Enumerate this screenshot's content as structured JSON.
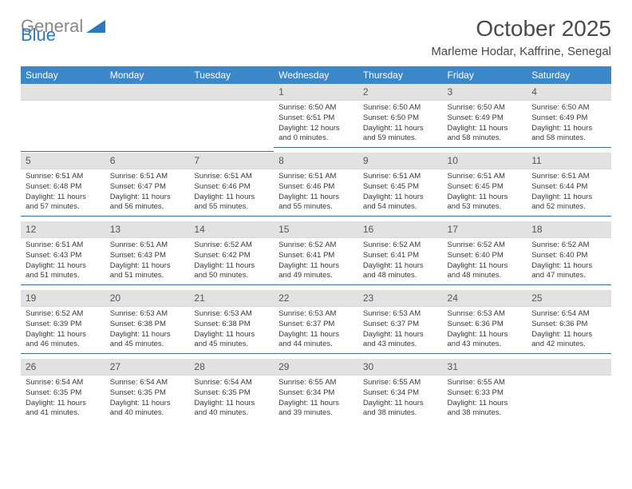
{
  "brand": {
    "part1": "General",
    "part2": "Blue"
  },
  "title": "October 2025",
  "location": "Marleme Hodar, Kaffrine, Senegal",
  "colors": {
    "header_bg": "#3b87c8",
    "header_text": "#ffffff",
    "daynum_bg": "#e2e2e2",
    "row_divider": "#3b6fa0",
    "logo_gray": "#888888",
    "logo_blue": "#2f78bd",
    "body_text": "#3a3a3a"
  },
  "day_headers": [
    "Sunday",
    "Monday",
    "Tuesday",
    "Wednesday",
    "Thursday",
    "Friday",
    "Saturday"
  ],
  "weeks": [
    [
      null,
      null,
      null,
      {
        "n": "1",
        "sr": "6:50 AM",
        "ss": "6:51 PM",
        "dl": "12 hours and 0 minutes."
      },
      {
        "n": "2",
        "sr": "6:50 AM",
        "ss": "6:50 PM",
        "dl": "11 hours and 59 minutes."
      },
      {
        "n": "3",
        "sr": "6:50 AM",
        "ss": "6:49 PM",
        "dl": "11 hours and 58 minutes."
      },
      {
        "n": "4",
        "sr": "6:50 AM",
        "ss": "6:49 PM",
        "dl": "11 hours and 58 minutes."
      }
    ],
    [
      {
        "n": "5",
        "sr": "6:51 AM",
        "ss": "6:48 PM",
        "dl": "11 hours and 57 minutes."
      },
      {
        "n": "6",
        "sr": "6:51 AM",
        "ss": "6:47 PM",
        "dl": "11 hours and 56 minutes."
      },
      {
        "n": "7",
        "sr": "6:51 AM",
        "ss": "6:46 PM",
        "dl": "11 hours and 55 minutes."
      },
      {
        "n": "8",
        "sr": "6:51 AM",
        "ss": "6:46 PM",
        "dl": "11 hours and 55 minutes."
      },
      {
        "n": "9",
        "sr": "6:51 AM",
        "ss": "6:45 PM",
        "dl": "11 hours and 54 minutes."
      },
      {
        "n": "10",
        "sr": "6:51 AM",
        "ss": "6:45 PM",
        "dl": "11 hours and 53 minutes."
      },
      {
        "n": "11",
        "sr": "6:51 AM",
        "ss": "6:44 PM",
        "dl": "11 hours and 52 minutes."
      }
    ],
    [
      {
        "n": "12",
        "sr": "6:51 AM",
        "ss": "6:43 PM",
        "dl": "11 hours and 51 minutes."
      },
      {
        "n": "13",
        "sr": "6:51 AM",
        "ss": "6:43 PM",
        "dl": "11 hours and 51 minutes."
      },
      {
        "n": "14",
        "sr": "6:52 AM",
        "ss": "6:42 PM",
        "dl": "11 hours and 50 minutes."
      },
      {
        "n": "15",
        "sr": "6:52 AM",
        "ss": "6:41 PM",
        "dl": "11 hours and 49 minutes."
      },
      {
        "n": "16",
        "sr": "6:52 AM",
        "ss": "6:41 PM",
        "dl": "11 hours and 48 minutes."
      },
      {
        "n": "17",
        "sr": "6:52 AM",
        "ss": "6:40 PM",
        "dl": "11 hours and 48 minutes."
      },
      {
        "n": "18",
        "sr": "6:52 AM",
        "ss": "6:40 PM",
        "dl": "11 hours and 47 minutes."
      }
    ],
    [
      {
        "n": "19",
        "sr": "6:52 AM",
        "ss": "6:39 PM",
        "dl": "11 hours and 46 minutes."
      },
      {
        "n": "20",
        "sr": "6:53 AM",
        "ss": "6:38 PM",
        "dl": "11 hours and 45 minutes."
      },
      {
        "n": "21",
        "sr": "6:53 AM",
        "ss": "6:38 PM",
        "dl": "11 hours and 45 minutes."
      },
      {
        "n": "22",
        "sr": "6:53 AM",
        "ss": "6:37 PM",
        "dl": "11 hours and 44 minutes."
      },
      {
        "n": "23",
        "sr": "6:53 AM",
        "ss": "6:37 PM",
        "dl": "11 hours and 43 minutes."
      },
      {
        "n": "24",
        "sr": "6:53 AM",
        "ss": "6:36 PM",
        "dl": "11 hours and 43 minutes."
      },
      {
        "n": "25",
        "sr": "6:54 AM",
        "ss": "6:36 PM",
        "dl": "11 hours and 42 minutes."
      }
    ],
    [
      {
        "n": "26",
        "sr": "6:54 AM",
        "ss": "6:35 PM",
        "dl": "11 hours and 41 minutes."
      },
      {
        "n": "27",
        "sr": "6:54 AM",
        "ss": "6:35 PM",
        "dl": "11 hours and 40 minutes."
      },
      {
        "n": "28",
        "sr": "6:54 AM",
        "ss": "6:35 PM",
        "dl": "11 hours and 40 minutes."
      },
      {
        "n": "29",
        "sr": "6:55 AM",
        "ss": "6:34 PM",
        "dl": "11 hours and 39 minutes."
      },
      {
        "n": "30",
        "sr": "6:55 AM",
        "ss": "6:34 PM",
        "dl": "11 hours and 38 minutes."
      },
      {
        "n": "31",
        "sr": "6:55 AM",
        "ss": "6:33 PM",
        "dl": "11 hours and 38 minutes."
      },
      null
    ]
  ],
  "labels": {
    "sunrise": "Sunrise:",
    "sunset": "Sunset:",
    "daylight": "Daylight:"
  }
}
